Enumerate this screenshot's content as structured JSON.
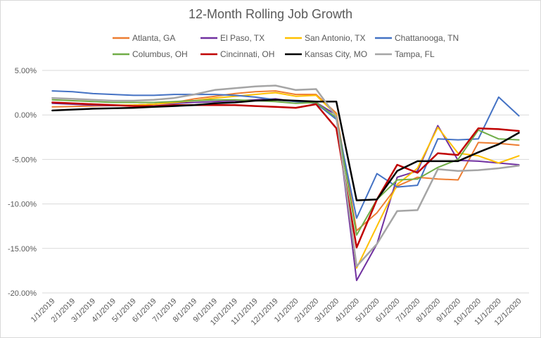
{
  "chart_data": {
    "type": "line",
    "title": "12-Month Rolling Job Growth",
    "xlabel": "",
    "ylabel": "",
    "ylim": [
      -20,
      5
    ],
    "yticks": [
      5,
      0,
      -5,
      -10,
      -15,
      -20
    ],
    "ytick_labels": [
      "5.00%",
      "0.00%",
      "-5.00%",
      "-10.00%",
      "-15.00%",
      "-20.00%"
    ],
    "grid": true,
    "legend_position": "top",
    "categories": [
      "1/1/2019",
      "2/1/2019",
      "3/1/2019",
      "4/1/2019",
      "5/1/2019",
      "6/1/2019",
      "7/1/2019",
      "8/1/2019",
      "9/1/2019",
      "10/1/2019",
      "11/1/2019",
      "12/1/2019",
      "1/1/2020",
      "2/1/2020",
      "3/1/2020",
      "4/1/2020",
      "5/1/2020",
      "6/1/2020",
      "7/1/2020",
      "8/1/2020",
      "9/1/2020",
      "10/1/2020",
      "11/1/2020",
      "12/1/2020"
    ],
    "series": [
      {
        "name": "Atlanta, GA",
        "color": "#ed7d31",
        "width": 2,
        "values": [
          0.9,
          0.95,
          1.0,
          1.05,
          1.1,
          1.2,
          1.4,
          1.8,
          2.1,
          2.4,
          2.6,
          2.7,
          2.3,
          2.3,
          0.2,
          -13.0,
          -11.0,
          -8.0,
          -7.0,
          -7.2,
          -7.3,
          -3.1,
          -3.2,
          -3.4
        ]
      },
      {
        "name": "El Paso, TX",
        "color": "#7030a0",
        "width": 2,
        "values": [
          1.3,
          1.2,
          1.1,
          1.05,
          1.1,
          1.2,
          1.3,
          1.4,
          1.5,
          1.6,
          1.7,
          1.8,
          1.5,
          1.4,
          0.0,
          -18.6,
          -14.5,
          -7.0,
          -6.3,
          -1.2,
          -5.1,
          -5.2,
          -5.4,
          -5.6
        ]
      },
      {
        "name": "San Antonio, TX",
        "color": "#ffc000",
        "width": 2,
        "values": [
          1.4,
          1.3,
          1.2,
          1.1,
          1.1,
          1.2,
          1.4,
          1.6,
          1.9,
          2.1,
          2.3,
          2.5,
          2.1,
          2.2,
          0.0,
          -17.2,
          -12.5,
          -7.8,
          -6.0,
          -1.4,
          -4.3,
          -4.6,
          -5.4,
          -4.6
        ]
      },
      {
        "name": "Chattanooga, TN",
        "color": "#4472c4",
        "width": 2,
        "values": [
          2.7,
          2.6,
          2.4,
          2.3,
          2.2,
          2.2,
          2.3,
          2.3,
          2.3,
          2.2,
          2.0,
          1.7,
          1.5,
          1.3,
          -0.5,
          -11.6,
          -6.6,
          -8.1,
          -7.9,
          -2.7,
          -2.8,
          -2.7,
          2.0,
          -0.1
        ]
      },
      {
        "name": "Columbus, OH",
        "color": "#70ad47",
        "width": 2,
        "values": [
          1.7,
          1.6,
          1.5,
          1.4,
          1.4,
          1.4,
          1.5,
          1.6,
          1.7,
          1.7,
          1.6,
          1.5,
          1.3,
          1.4,
          -0.3,
          -13.5,
          -9.5,
          -7.3,
          -7.2,
          -5.9,
          -5.0,
          -1.7,
          -2.7,
          -2.8
        ]
      },
      {
        "name": "Cincinnati, OH",
        "color": "#c00000",
        "width": 2.5,
        "values": [
          1.4,
          1.3,
          1.2,
          1.1,
          1.0,
          1.0,
          1.1,
          1.1,
          1.1,
          1.1,
          1.0,
          0.9,
          0.8,
          1.2,
          -1.5,
          -14.9,
          -9.5,
          -5.6,
          -6.5,
          -4.3,
          -4.5,
          -1.5,
          -1.6,
          -1.8
        ]
      },
      {
        "name": "Kansas City, MO",
        "color": "#000000",
        "width": 2.5,
        "values": [
          0.5,
          0.6,
          0.7,
          0.75,
          0.8,
          0.9,
          1.0,
          1.1,
          1.3,
          1.4,
          1.6,
          1.7,
          1.6,
          1.5,
          1.5,
          -9.6,
          -9.5,
          -6.3,
          -5.2,
          -5.2,
          -5.2,
          -4.2,
          -3.3,
          -2.0
        ]
      },
      {
        "name": "Tampa, FL",
        "color": "#a5a5a5",
        "width": 2.5,
        "values": [
          1.9,
          1.8,
          1.7,
          1.6,
          1.6,
          1.7,
          1.9,
          2.3,
          2.8,
          3.0,
          3.2,
          3.3,
          2.8,
          2.9,
          -0.2,
          -17.0,
          -14.5,
          -10.8,
          -10.7,
          -6.1,
          -6.3,
          -6.2,
          -6.0,
          -5.7
        ]
      }
    ]
  }
}
